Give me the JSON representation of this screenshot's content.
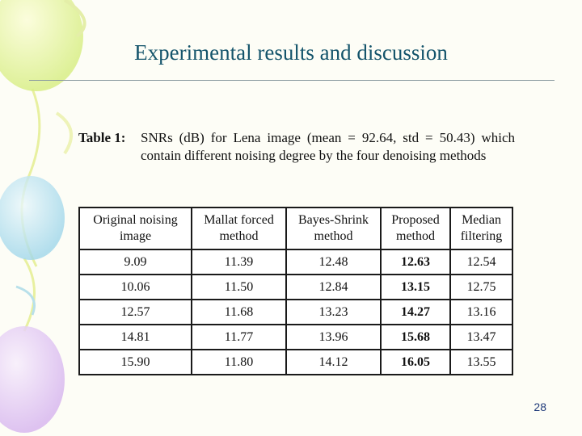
{
  "slide": {
    "title": "Experimental results and discussion",
    "page_number": "28"
  },
  "caption": {
    "label": "Table 1:",
    "text": "SNRs (dB) for Lena image (mean = 92.64, std = 50.43) which contain different noising degree by the four denoising methods"
  },
  "table": {
    "headers": [
      [
        "Original noising",
        "image"
      ],
      [
        "Mallat forced",
        "method"
      ],
      [
        "Bayes-Shrink",
        "method"
      ],
      [
        "Proposed",
        "method"
      ],
      [
        "Median",
        "filtering"
      ]
    ],
    "rows": [
      [
        "9.09",
        "11.39",
        "12.48",
        "12.63",
        "12.54"
      ],
      [
        "10.06",
        "11.50",
        "12.84",
        "13.15",
        "12.75"
      ],
      [
        "12.57",
        "11.68",
        "13.23",
        "14.27",
        "13.16"
      ],
      [
        "14.81",
        "11.77",
        "13.96",
        "15.68",
        "13.47"
      ],
      [
        "15.90",
        "11.80",
        "14.12",
        "16.05",
        "13.55"
      ]
    ],
    "bold_column": 3
  },
  "colors": {
    "title": "#14546b",
    "rule": "#8a9aa0",
    "page_number": "#1f3a7a"
  }
}
